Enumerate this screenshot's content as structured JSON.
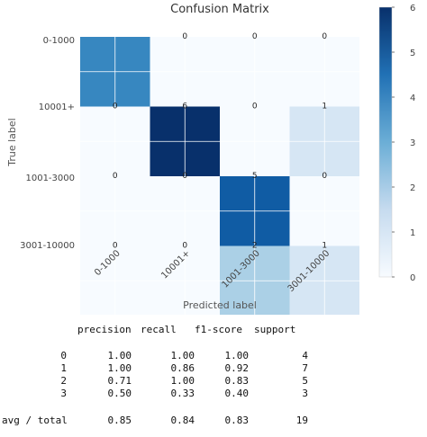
{
  "chart_data": {
    "type": "heatmap",
    "title": "Confusion Matrix",
    "xlabel": "Predicted label",
    "ylabel": "True label",
    "row_labels": [
      "0-1000",
      "10001+",
      "1001-3000",
      "3001-10000"
    ],
    "col_labels": [
      "0-1000",
      "10001+",
      "1001-3000",
      "3001-10000"
    ],
    "matrix": [
      [
        4,
        0,
        0,
        0
      ],
      [
        0,
        6,
        0,
        1
      ],
      [
        0,
        0,
        5,
        0
      ],
      [
        0,
        0,
        2,
        1
      ]
    ],
    "displayed_text": [
      [
        "",
        "0",
        "0",
        "0"
      ],
      [
        "0",
        "6",
        "0",
        "1"
      ],
      [
        "0",
        "0",
        "5",
        "0"
      ],
      [
        "0",
        "0",
        "2",
        "1"
      ]
    ],
    "colormap": "Blues",
    "colorbar": {
      "min": 0,
      "max": 6,
      "ticks": [
        "0",
        "1",
        "2",
        "3",
        "4",
        "5",
        "6"
      ]
    },
    "grid": true
  },
  "report": {
    "headers": [
      "precision",
      "recall",
      "f1-score",
      "support"
    ],
    "rows": [
      {
        "label": "0",
        "values": [
          "1.00",
          "1.00",
          "1.00",
          "4"
        ]
      },
      {
        "label": "1",
        "values": [
          "1.00",
          "0.86",
          "0.92",
          "7"
        ]
      },
      {
        "label": "2",
        "values": [
          "0.71",
          "1.00",
          "0.83",
          "5"
        ]
      },
      {
        "label": "3",
        "values": [
          "0.50",
          "0.33",
          "0.40",
          "3"
        ]
      }
    ],
    "total": {
      "label": "avg / total",
      "values": [
        "0.85",
        "0.84",
        "0.83",
        "19"
      ]
    }
  }
}
